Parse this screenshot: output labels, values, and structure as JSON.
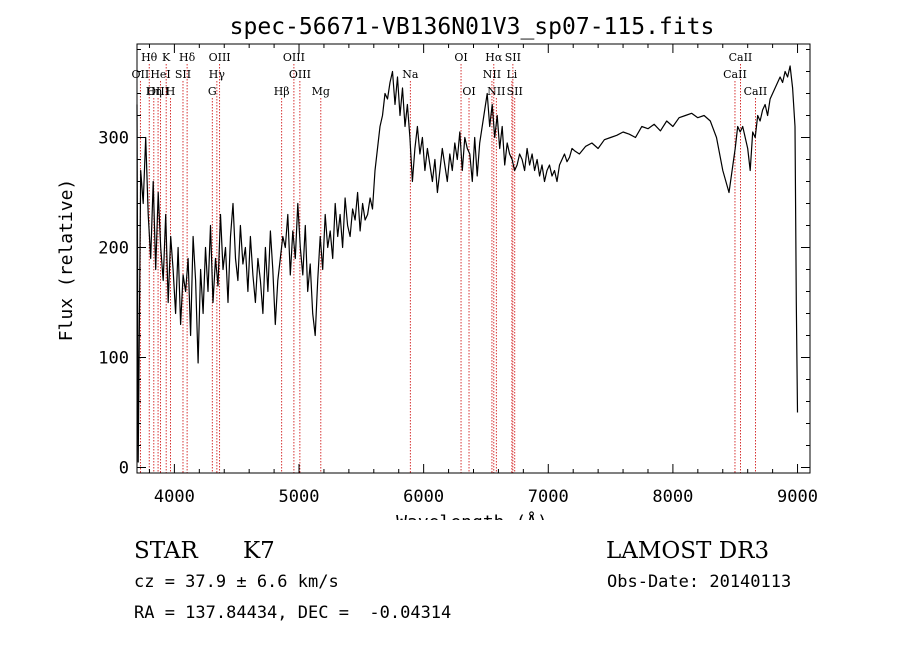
{
  "chart_data": {
    "type": "line",
    "title": "spec-56671-VB136N01V3_sp07-115.fits",
    "xlabel": "Wavelength (Å)",
    "ylabel": "Flux (relative)",
    "xlim": [
      3700,
      9100
    ],
    "ylim": [
      -5,
      385
    ],
    "xticks": [
      4000,
      5000,
      6000,
      7000,
      8000,
      9000
    ],
    "yticks": [
      0,
      100,
      200,
      300
    ],
    "grid": false,
    "line_color": "#000000",
    "marker_color": "#cc0000",
    "series": [
      {
        "x": [
          3700,
          3710,
          3730,
          3750,
          3770,
          3790,
          3810,
          3830,
          3850,
          3870,
          3890,
          3910,
          3930,
          3950,
          3970,
          3990,
          4010,
          4030,
          4050,
          4070,
          4090,
          4110,
          4130,
          4150,
          4170,
          4190,
          4210,
          4230,
          4250,
          4270,
          4290,
          4310,
          4330,
          4350,
          4370,
          4390,
          4410,
          4430,
          4450,
          4470,
          4490,
          4510,
          4530,
          4550,
          4570,
          4590,
          4610,
          4630,
          4650,
          4670,
          4690,
          4710,
          4730,
          4750,
          4770,
          4790,
          4810,
          4830,
          4850,
          4870,
          4890,
          4910,
          4930,
          4950,
          4970,
          4990,
          5010,
          5030,
          5050,
          5070,
          5090,
          5110,
          5130,
          5150,
          5170,
          5190,
          5210,
          5230,
          5250,
          5270,
          5290,
          5310,
          5330,
          5350,
          5370,
          5390,
          5410,
          5430,
          5450,
          5470,
          5490,
          5510,
          5530,
          5550,
          5570,
          5590,
          5610,
          5630,
          5650,
          5670,
          5690,
          5710,
          5730,
          5750,
          5770,
          5790,
          5810,
          5830,
          5850,
          5870,
          5890,
          5910,
          5930,
          5950,
          5970,
          5990,
          6010,
          6030,
          6050,
          6070,
          6090,
          6110,
          6130,
          6150,
          6170,
          6190,
          6210,
          6230,
          6250,
          6270,
          6290,
          6310,
          6330,
          6350,
          6370,
          6390,
          6410,
          6430,
          6450,
          6470,
          6490,
          6510,
          6530,
          6550,
          6570,
          6590,
          6610,
          6630,
          6650,
          6670,
          6690,
          6710,
          6730,
          6750,
          6770,
          6790,
          6810,
          6830,
          6850,
          6870,
          6890,
          6910,
          6930,
          6950,
          6970,
          6990,
          7010,
          7030,
          7050,
          7070,
          7090,
          7110,
          7130,
          7150,
          7170,
          7190,
          7210,
          7250,
          7300,
          7350,
          7400,
          7450,
          7500,
          7550,
          7600,
          7650,
          7700,
          7750,
          7800,
          7850,
          7900,
          7950,
          8000,
          8050,
          8100,
          8150,
          8200,
          8250,
          8300,
          8350,
          8400,
          8450,
          8500,
          8520,
          8540,
          8560,
          8580,
          8600,
          8620,
          8640,
          8660,
          8680,
          8700,
          8720,
          8740,
          8760,
          8780,
          8800,
          8820,
          8840,
          8860,
          8880,
          8900,
          8920,
          8940,
          8960,
          8980,
          8990,
          9000
        ],
        "y": [
          330,
          5,
          270,
          240,
          300,
          230,
          190,
          260,
          180,
          250,
          200,
          170,
          230,
          150,
          210,
          180,
          140,
          200,
          130,
          175,
          160,
          190,
          120,
          210,
          170,
          95,
          180,
          140,
          200,
          160,
          220,
          150,
          190,
          165,
          230,
          180,
          200,
          150,
          210,
          240,
          190,
          170,
          220,
          185,
          200,
          160,
          210,
          175,
          150,
          190,
          170,
          140,
          200,
          160,
          215,
          180,
          130,
          170,
          190,
          210,
          200,
          230,
          175,
          215,
          190,
          240,
          200,
          175,
          220,
          160,
          185,
          140,
          120,
          170,
          210,
          180,
          230,
          200,
          215,
          190,
          240,
          210,
          230,
          200,
          245,
          220,
          210,
          235,
          225,
          250,
          215,
          240,
          225,
          230,
          245,
          235,
          270,
          290,
          310,
          320,
          340,
          335,
          350,
          360,
          330,
          355,
          320,
          345,
          310,
          330,
          300,
          260,
          290,
          310,
          285,
          300,
          270,
          290,
          275,
          260,
          280,
          250,
          270,
          290,
          275,
          260,
          285,
          270,
          295,
          280,
          305,
          270,
          300,
          290,
          285,
          260,
          300,
          265,
          295,
          310,
          325,
          340,
          310,
          330,
          300,
          320,
          290,
          310,
          275,
          295,
          285,
          280,
          270,
          275,
          285,
          280,
          270,
          290,
          275,
          285,
          270,
          280,
          265,
          275,
          260,
          270,
          275,
          265,
          270,
          260,
          275,
          280,
          285,
          278,
          282,
          290,
          288,
          285,
          292,
          295,
          290,
          298,
          300,
          302,
          305,
          303,
          300,
          310,
          308,
          312,
          306,
          315,
          310,
          318,
          320,
          322,
          318,
          320,
          315,
          300,
          270,
          250,
          290,
          310,
          305,
          310,
          300,
          290,
          270,
          305,
          300,
          320,
          315,
          325,
          330,
          320,
          335,
          340,
          345,
          350,
          355,
          350,
          360,
          355,
          365,
          345,
          310,
          150,
          50
        ]
      }
    ],
    "line_markers": [
      {
        "label": "Hθ",
        "x": 3798,
        "row": 1
      },
      {
        "label": "OII",
        "x": 3727,
        "row": 2
      },
      {
        "label": "OIII",
        "x": 3869,
        "row": 3
      },
      {
        "label": "K",
        "x": 3934,
        "row": 1
      },
      {
        "label": "HeI",
        "x": 3889,
        "row": 2
      },
      {
        "label": "Hη",
        "x": 3835,
        "row": 3
      },
      {
        "label": "SII",
        "x": 4069,
        "row": 2
      },
      {
        "label": "H",
        "x": 3969,
        "row": 3
      },
      {
        "label": "Hδ",
        "x": 4102,
        "row": 1
      },
      {
        "label": "OIII",
        "x": 4363,
        "row": 1
      },
      {
        "label": "Hγ",
        "x": 4341,
        "row": 2
      },
      {
        "label": "G",
        "x": 4304,
        "row": 3
      },
      {
        "label": "OIII",
        "x": 4959,
        "row": 1
      },
      {
        "label": "OIII",
        "x": 5007,
        "row": 2
      },
      {
        "label": "Hβ",
        "x": 4861,
        "row": 3
      },
      {
        "label": "Mg",
        "x": 5175,
        "row": 3
      },
      {
        "label": "Na",
        "x": 5893,
        "row": 2
      },
      {
        "label": "OI",
        "x": 6300,
        "row": 1
      },
      {
        "label": "OI",
        "x": 6364,
        "row": 3
      },
      {
        "label": "Hα",
        "x": 6563,
        "row": 1
      },
      {
        "label": "NII",
        "x": 6548,
        "row": 2
      },
      {
        "label": "NII",
        "x": 6583,
        "row": 3
      },
      {
        "label": "SII",
        "x": 6716,
        "row": 1
      },
      {
        "label": "Li",
        "x": 6708,
        "row": 2
      },
      {
        "label": "SII",
        "x": 6731,
        "row": 3
      },
      {
        "label": "CaII",
        "x": 8542,
        "row": 1
      },
      {
        "label": "CaII",
        "x": 8498,
        "row": 2
      },
      {
        "label": "CaII",
        "x": 8662,
        "row": 3
      }
    ]
  },
  "info": {
    "class_label": "STAR",
    "subclass": "K7",
    "cz": "cz = 37.9 ± 6.6 km/s",
    "radec": "RA = 137.84434, DEC =  -0.04314",
    "survey": "LAMOST DR3",
    "obs_date": "Obs-Date: 20140113"
  }
}
